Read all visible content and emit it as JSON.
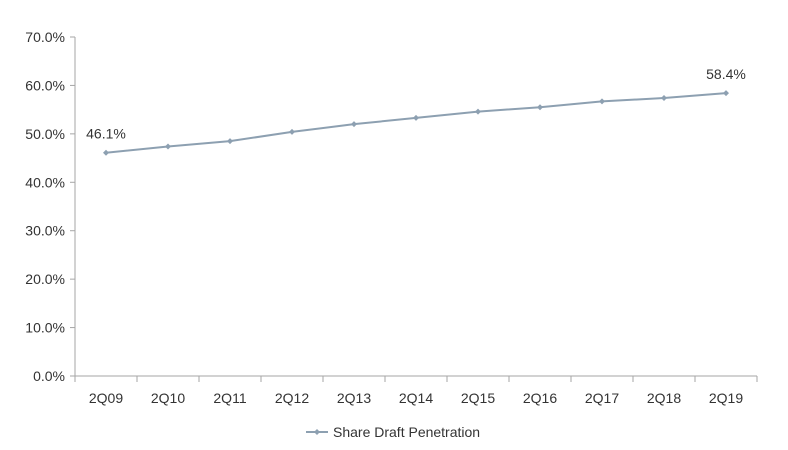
{
  "chart_data": {
    "type": "line",
    "categories": [
      "2Q09",
      "2Q10",
      "2Q11",
      "2Q12",
      "2Q13",
      "2Q14",
      "2Q15",
      "2Q16",
      "2Q17",
      "2Q18",
      "2Q19"
    ],
    "series": [
      {
        "name": "Share Draft Penetration",
        "values": [
          46.1,
          47.4,
          48.5,
          50.4,
          52.0,
          53.3,
          54.6,
          55.5,
          56.7,
          57.4,
          58.4
        ],
        "color": "#8da0b1"
      }
    ],
    "ylim": [
      0,
      70
    ],
    "yticks": [
      "0.0%",
      "10.0%",
      "20.0%",
      "30.0%",
      "40.0%",
      "50.0%",
      "60.0%",
      "70.0%"
    ],
    "data_labels": [
      {
        "index": 0,
        "text": "46.1%"
      },
      {
        "index": 10,
        "text": "58.4%"
      }
    ],
    "grid": false,
    "legend_position": "bottom"
  }
}
